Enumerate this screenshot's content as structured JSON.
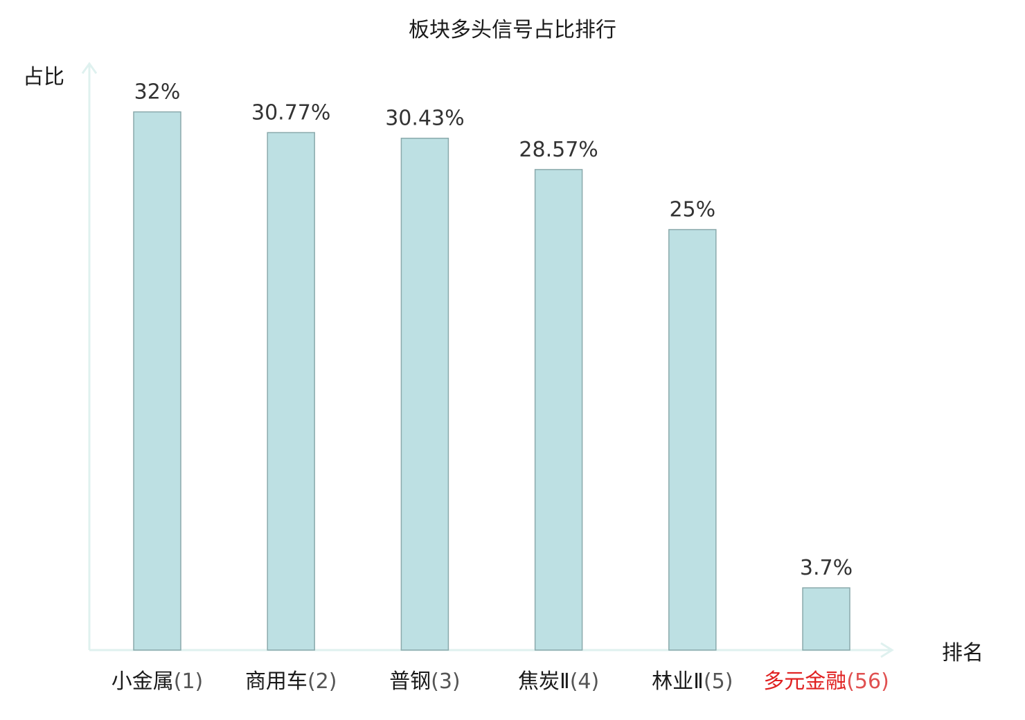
{
  "chart_data": {
    "type": "bar",
    "title": "板块多头信号占比排行",
    "ylabel": "占比",
    "xlabel": "排名",
    "ylim": [
      0,
      34
    ],
    "grid": false,
    "legend": "none",
    "categories": [
      {
        "name": "小金属",
        "rank": "(1)",
        "highlight": false
      },
      {
        "name": "商用车",
        "rank": "(2)",
        "highlight": false
      },
      {
        "name": "普钢",
        "rank": "(3)",
        "highlight": false
      },
      {
        "name": "焦炭Ⅱ",
        "rank": "(4)",
        "highlight": false
      },
      {
        "name": "林业Ⅱ",
        "rank": "(5)",
        "highlight": false
      },
      {
        "name": "多元金融",
        "rank": "(56)",
        "highlight": true
      }
    ],
    "values": [
      32,
      30.77,
      30.43,
      28.57,
      25,
      3.7
    ],
    "value_labels": [
      "32%",
      "30.77%",
      "30.43%",
      "28.57%",
      "25%",
      "3.7%"
    ]
  },
  "colors": {
    "bar_fill": "#bde0e3",
    "bar_stroke": "#8aa9ab",
    "axis": "#dff1ef",
    "text": "#1a1a1a",
    "highlight_name": "#e02020",
    "highlight_rank": "#e05050",
    "rank": "#555555"
  }
}
